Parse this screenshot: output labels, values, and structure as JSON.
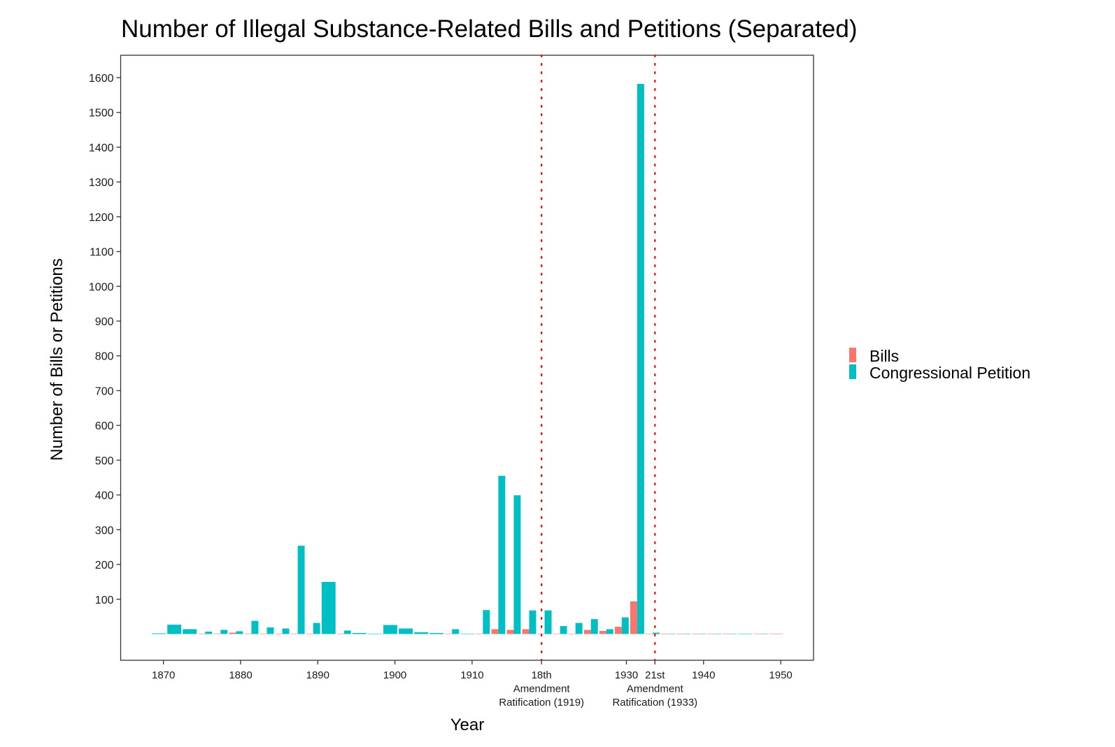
{
  "chart_data": {
    "type": "bar",
    "title": "Number of Illegal Substance-Related Bills and Petitions (Separated)",
    "xlabel": "Year",
    "ylabel": "Number of Bills or Petitions",
    "xlim": [
      1866,
      1954
    ],
    "ylim": [
      -75,
      1665
    ],
    "grid": false,
    "legend_position": "right",
    "y_ticks": [
      100,
      200,
      300,
      400,
      500,
      600,
      700,
      800,
      900,
      1000,
      1100,
      1200,
      1300,
      1400,
      1500,
      1600
    ],
    "x_ticks": [
      {
        "x": 1870,
        "label": "1870"
      },
      {
        "x": 1880,
        "label": "1880"
      },
      {
        "x": 1890,
        "label": "1890"
      },
      {
        "x": 1900,
        "label": "1900"
      },
      {
        "x": 1910,
        "label": "1910"
      },
      {
        "x": 1919,
        "label": [
          "18th",
          "Amendment",
          "Ratification (1919)"
        ]
      },
      {
        "x": 1930,
        "label": "1930"
      },
      {
        "x": 1933.7,
        "label": [
          "21st",
          "Amendment",
          "Ratification (1933)"
        ]
      },
      {
        "x": 1940,
        "label": "1940"
      },
      {
        "x": 1950,
        "label": "1950"
      }
    ],
    "vlines": [
      {
        "x": 1919,
        "color": "#FF0000",
        "style": "dotted"
      },
      {
        "x": 1933.7,
        "color": "#FF0000",
        "style": "dotted"
      }
    ],
    "series": [
      {
        "name": "Bills",
        "color": "#F8766D"
      },
      {
        "name": "Congressional Petition",
        "color": "#00BFC4"
      }
    ],
    "sessions": [
      {
        "x": 1869,
        "bills": null,
        "petitions": 2
      },
      {
        "x": 1871,
        "bills": null,
        "petitions": 27
      },
      {
        "x": 1873,
        "bills": null,
        "petitions": 14
      },
      {
        "x": 1875,
        "bills": 1,
        "petitions": 7
      },
      {
        "x": 1877,
        "bills": 1,
        "petitions": 12
      },
      {
        "x": 1879,
        "bills": 4,
        "petitions": 8
      },
      {
        "x": 1881,
        "bills": 1,
        "petitions": 38
      },
      {
        "x": 1883,
        "bills": 1,
        "petitions": 19
      },
      {
        "x": 1885,
        "bills": 1,
        "petitions": 16
      },
      {
        "x": 1887,
        "bills": 1,
        "petitions": 254
      },
      {
        "x": 1889,
        "bills": 1,
        "petitions": 32
      },
      {
        "x": 1891,
        "bills": null,
        "petitions": 150
      },
      {
        "x": 1893,
        "bills": 1,
        "petitions": 10
      },
      {
        "x": 1895,
        "bills": null,
        "petitions": 3
      },
      {
        "x": 1897,
        "bills": null,
        "petitions": 1
      },
      {
        "x": 1899,
        "bills": null,
        "petitions": 26
      },
      {
        "x": 1901,
        "bills": null,
        "petitions": 16
      },
      {
        "x": 1903,
        "bills": null,
        "petitions": 5
      },
      {
        "x": 1905,
        "bills": null,
        "petitions": 3
      },
      {
        "x": 1907,
        "bills": 1,
        "petitions": 14
      },
      {
        "x": 1909,
        "bills": null,
        "petitions": 1
      },
      {
        "x": 1911,
        "bills": 1,
        "petitions": 69
      },
      {
        "x": 1913,
        "bills": 14,
        "petitions": 455
      },
      {
        "x": 1915,
        "bills": 12,
        "petitions": 399
      },
      {
        "x": 1917,
        "bills": 14,
        "petitions": 68
      },
      {
        "x": 1919,
        "bills": 1,
        "petitions": 68
      },
      {
        "x": 1921,
        "bills": 1,
        "petitions": 23
      },
      {
        "x": 1923,
        "bills": 1,
        "petitions": 32
      },
      {
        "x": 1925,
        "bills": 12,
        "petitions": 43
      },
      {
        "x": 1927,
        "bills": 9,
        "petitions": 14
      },
      {
        "x": 1929,
        "bills": 21,
        "petitions": 48
      },
      {
        "x": 1931,
        "bills": 94,
        "petitions": 1582
      },
      {
        "x": 1933,
        "bills": 1,
        "petitions": 4
      },
      {
        "x": 1935,
        "bills": 1,
        "petitions": 1
      },
      {
        "x": 1937,
        "bills": 1,
        "petitions": 1
      },
      {
        "x": 1939,
        "bills": 1,
        "petitions": 1
      },
      {
        "x": 1941,
        "bills": 1,
        "petitions": 1
      },
      {
        "x": 1943,
        "bills": 1,
        "petitions": 1
      },
      {
        "x": 1945,
        "bills": null,
        "petitions": 0.5
      },
      {
        "x": 1947,
        "bills": 1,
        "petitions": 0.5
      },
      {
        "x": 1949,
        "bills": 1,
        "petitions": null
      }
    ]
  }
}
